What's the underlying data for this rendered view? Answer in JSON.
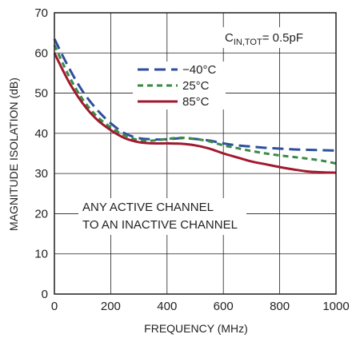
{
  "chart_data": {
    "type": "line",
    "xlabel": "FREQUENCY (MHz)",
    "ylabel": "MAGNITUDE ISOLATION (dB)",
    "xlim": [
      0,
      1000
    ],
    "ylim": [
      0,
      70
    ],
    "xticks": [
      0,
      200,
      400,
      600,
      800,
      1000
    ],
    "yticks": [
      0,
      10,
      20,
      30,
      40,
      50,
      60,
      70
    ],
    "grid": true,
    "legend_position": "top-center",
    "annotation_box": {
      "main": "C",
      "sub": "IN,TOT",
      "rest": "= 0.5pF"
    },
    "note_lines": [
      "ANY ACTIVE CHANNEL",
      "TO AN INACTIVE CHANNEL"
    ],
    "series": [
      {
        "name": "−40°C",
        "color": "#2e4f9e",
        "dash": "dashed",
        "x": [
          0,
          50,
          100,
          150,
          200,
          250,
          300,
          350,
          400,
          450,
          500,
          550,
          600,
          650,
          700,
          750,
          800,
          850,
          900,
          950,
          1000
        ],
        "y": [
          63.5,
          56.5,
          50.5,
          46,
          42.5,
          40,
          38.8,
          38.5,
          38.5,
          38.8,
          38.6,
          38.2,
          37.5,
          37,
          36.7,
          36.4,
          36.2,
          36,
          35.9,
          35.8,
          35.7
        ]
      },
      {
        "name": "25°C",
        "color": "#3a8a47",
        "dash": "dotted",
        "x": [
          0,
          50,
          100,
          150,
          200,
          250,
          300,
          350,
          400,
          450,
          500,
          550,
          600,
          650,
          700,
          750,
          800,
          850,
          900,
          950,
          1000
        ],
        "y": [
          62,
          54.5,
          48.5,
          44.3,
          41.5,
          39.5,
          38.3,
          38.2,
          38.6,
          38.9,
          38.6,
          38,
          37,
          36.3,
          35.6,
          35,
          34.5,
          34.1,
          33.7,
          33.2,
          32.5
        ]
      },
      {
        "name": "85°C",
        "color": "#a0192e",
        "dash": "solid",
        "x": [
          0,
          50,
          100,
          150,
          200,
          250,
          300,
          350,
          400,
          450,
          500,
          550,
          600,
          650,
          700,
          750,
          800,
          850,
          900,
          950,
          1000
        ],
        "y": [
          60,
          53,
          47.5,
          43.5,
          40.8,
          38.8,
          37.8,
          37.5,
          37.5,
          37.4,
          37,
          36.2,
          35,
          34,
          33,
          32.3,
          31.6,
          31,
          30.5,
          30.3,
          30.2
        ]
      }
    ]
  }
}
